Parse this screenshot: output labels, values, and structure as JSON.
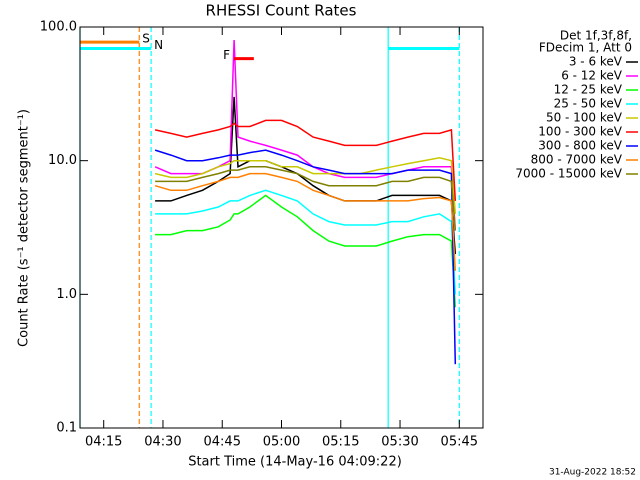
{
  "chart_data": {
    "type": "line",
    "title": "RHESSI Count Rates",
    "xlabel": "Start Time (14-May-16 04:09:22)",
    "ylabel": "Count Rate (s⁻¹ detector segment⁻¹)",
    "timestamp": "31-Aug-2022 18:52",
    "legend_header": [
      "Det 1f,3f,8f,",
      "FDecim 1, Att 0"
    ],
    "log_y": true,
    "xlim": [
      "04:09",
      "05:51"
    ],
    "xticks": [
      "04:15",
      "04:30",
      "04:45",
      "05:00",
      "05:15",
      "05:30",
      "05:45"
    ],
    "ylim": [
      0.1,
      100
    ],
    "yticks": [
      {
        "value": 0.1,
        "label": "0.1"
      },
      {
        "value": 1,
        "label": "1.0"
      },
      {
        "value": 10,
        "label": "10.0"
      },
      {
        "value": 100,
        "label": "100.0"
      }
    ],
    "x": [
      "04:28",
      "04:32",
      "04:36",
      "04:40",
      "04:44",
      "04:47",
      "04:48",
      "04:49",
      "04:52",
      "04:56",
      "05:00",
      "05:04",
      "05:08",
      "05:12",
      "05:16",
      "05:20",
      "05:24",
      "05:28",
      "05:32",
      "05:36",
      "05:40",
      "05:43",
      "05:44"
    ],
    "series": [
      {
        "name": "3 - 6 keV",
        "color": "#000000",
        "values": [
          5,
          5,
          5.5,
          6,
          7,
          8,
          30,
          9,
          10,
          10,
          9,
          8,
          6.5,
          5.5,
          5,
          5,
          5,
          5.5,
          5.5,
          5.5,
          5.5,
          5,
          2
        ]
      },
      {
        "name": "6 - 12 keV",
        "color": "#ff00ff",
        "values": [
          9,
          8,
          8,
          8,
          9,
          10,
          80,
          15,
          14,
          13,
          12,
          11,
          9,
          8,
          7.5,
          7.5,
          7.5,
          8,
          8.5,
          9,
          9,
          9,
          3
        ]
      },
      {
        "name": "12 - 25 keV",
        "color": "#00ff00",
        "values": [
          2.8,
          2.8,
          3,
          3,
          3.2,
          3.6,
          4,
          4,
          4.5,
          5.5,
          4.5,
          3.8,
          3,
          2.5,
          2.3,
          2.3,
          2.3,
          2.5,
          2.7,
          2.8,
          2.8,
          2.5,
          0.8
        ]
      },
      {
        "name": "25 - 50 keV",
        "color": "#00ffff",
        "values": [
          4,
          4,
          4,
          4.2,
          4.5,
          5,
          5,
          5,
          5.5,
          6,
          5.5,
          5,
          4,
          3.5,
          3.3,
          3.3,
          3.3,
          3.5,
          3.5,
          3.8,
          4,
          3.5,
          1
        ]
      },
      {
        "name": "50 - 100 keV",
        "color": "#c8c800",
        "values": [
          8,
          7.5,
          7.5,
          8,
          9,
          9.5,
          10,
          10,
          10,
          10,
          9,
          9,
          8,
          8,
          8,
          8,
          8.5,
          9,
          9.5,
          10,
          10.5,
          10,
          4
        ]
      },
      {
        "name": "100 - 300 keV",
        "color": "#ff0000",
        "values": [
          17,
          16,
          15,
          16,
          17,
          18,
          19,
          18,
          18,
          20,
          20,
          18,
          15,
          14,
          13,
          13,
          13,
          14,
          15,
          16,
          16,
          17,
          5
        ]
      },
      {
        "name": "300 - 800 keV",
        "color": "#0000ff",
        "values": [
          12,
          11,
          10,
          10,
          10.5,
          11,
          11,
          11,
          11.5,
          12,
          11,
          10,
          9,
          8.5,
          8,
          8,
          8,
          8,
          8.5,
          8.5,
          8.5,
          8,
          0.3
        ]
      },
      {
        "name": "800 - 7000 keV",
        "color": "#ff8000",
        "values": [
          6.5,
          6,
          6,
          6.5,
          7,
          7.5,
          7.5,
          7.5,
          8,
          8,
          7.5,
          7,
          6,
          5.5,
          5,
          5,
          5,
          5,
          5,
          5.2,
          5.3,
          5,
          1.5
        ]
      },
      {
        "name": "7000 - 15000 keV",
        "color": "#808000",
        "values": [
          7,
          7,
          7,
          7.5,
          8,
          8.5,
          8.5,
          8.5,
          9,
          9,
          8.5,
          8,
          7,
          6.5,
          6.5,
          6.5,
          6.5,
          7,
          7,
          7.5,
          7.5,
          7,
          3
        ]
      }
    ],
    "vlines": [
      {
        "x": "04:09",
        "color": "#00ffff",
        "dashed": false
      },
      {
        "x": "04:24",
        "color": "#ff8000",
        "dashed": true
      },
      {
        "x": "04:27",
        "color": "#00ffff",
        "dashed": true
      },
      {
        "x": "05:27",
        "color": "#00ffff",
        "dashed": false
      },
      {
        "x": "05:45",
        "color": "#00ffff",
        "dashed": true
      }
    ],
    "flags": [
      {
        "label": "S",
        "color": "#ff8000",
        "level": 77,
        "segments": [
          [
            "04:09",
            "04:24"
          ]
        ]
      },
      {
        "label": "N",
        "color": "#00ffff",
        "level": 69,
        "segments": [
          [
            "04:09",
            "04:27"
          ],
          [
            "05:27",
            "05:45"
          ]
        ]
      },
      {
        "label": "F",
        "color": "#ff0000",
        "level": 58,
        "segments": [
          [
            "04:48",
            "04:53"
          ]
        ]
      }
    ]
  }
}
